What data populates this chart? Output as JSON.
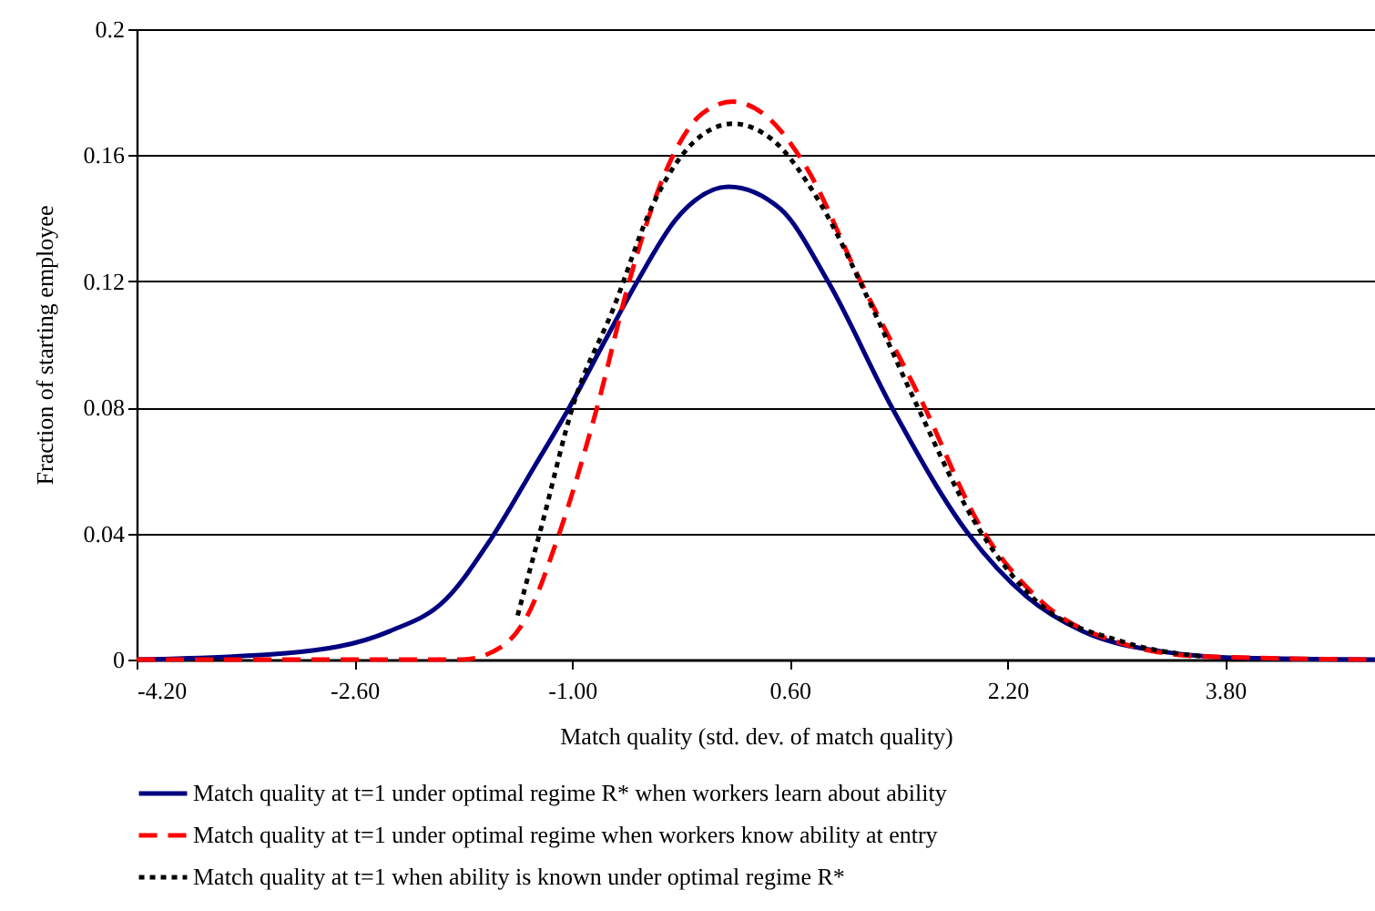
{
  "chart_data": {
    "type": "line",
    "xlabel": "Match quality (std. dev. of match quality)",
    "ylabel": "Fraction of starting employee",
    "xlim": [
      -4.2,
      4.9
    ],
    "xticks": [
      {
        "value": -4.2,
        "label": "-4.20"
      },
      {
        "value": -2.6,
        "label": "-2.60"
      },
      {
        "value": -1,
        "label": "-1.00"
      },
      {
        "value": 0.6,
        "label": "0.60"
      },
      {
        "value": 2.2,
        "label": "2.20"
      },
      {
        "value": 3.8,
        "label": "3.80"
      }
    ],
    "ylim": [
      0,
      0.2
    ],
    "yticks": [
      0,
      0.04,
      0.08,
      0.12,
      0.16,
      0.2
    ],
    "grid": "y",
    "legend": "bottom",
    "marker": "none",
    "series": [
      {
        "name": "Match quality at t=1 under optimal regime R* when workers learn about ability",
        "color": "#000080",
        "line_style": "solid",
        "x": [
          -4.2,
          -3.1,
          -2.34,
          -1.93,
          -1.6,
          -1.28,
          -1.02,
          -0.76,
          -0.52,
          -0.23,
          0.15,
          0.53,
          0.88,
          1.35,
          1.91,
          2.34,
          2.75,
          3.34,
          3.93,
          4.9
        ],
        "values": [
          0,
          0.002,
          0.009,
          0.019,
          0.038,
          0.061,
          0.08,
          0.101,
          0.12,
          0.14,
          0.15,
          0.143,
          0.12,
          0.08,
          0.04,
          0.02,
          0.009,
          0.0025,
          0.0005,
          0
        ]
      },
      {
        "name": "Match quality at t=1 under optimal regime when  workers know ability at entry",
        "color": "#ff0000",
        "line_style": "dashed",
        "x": [
          -4.2,
          -1.81,
          -1.52,
          -1.34,
          -1.11,
          -0.81,
          -0.58,
          -0.29,
          -0.05,
          0.18,
          0.41,
          0.71,
          1.12,
          1.58,
          1.99,
          2.46,
          3.05,
          3.63,
          4.9
        ],
        "values": [
          0,
          0,
          0.004,
          0.013,
          0.038,
          0.081,
          0.12,
          0.157,
          0.173,
          0.177,
          0.173,
          0.157,
          0.12,
          0.081,
          0.043,
          0.018,
          0.005,
          0.001,
          0
        ]
      },
      {
        "name": "Match quality at t=1 when ability is known under optimal regime R*",
        "color": "#000000",
        "line_style": "dotted",
        "x": [
          -1.4,
          -1.22,
          -0.99,
          -0.7,
          -0.41,
          -0.11,
          0.18,
          0.47,
          0.82,
          1.18,
          1.53,
          1.94,
          2.4,
          3.05,
          3.63
        ],
        "values": [
          0.014,
          0.043,
          0.081,
          0.111,
          0.144,
          0.164,
          0.17,
          0.165,
          0.145,
          0.114,
          0.081,
          0.045,
          0.019,
          0.0056,
          0.001
        ]
      }
    ]
  }
}
